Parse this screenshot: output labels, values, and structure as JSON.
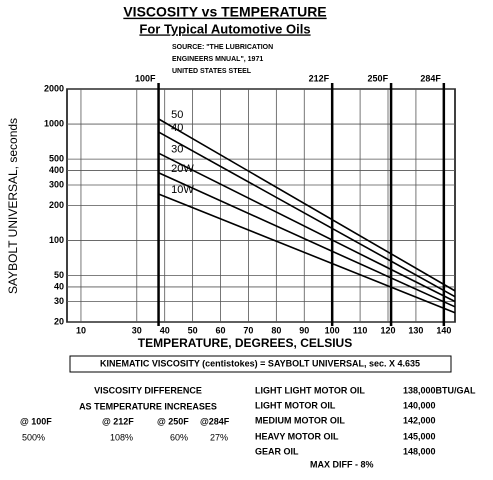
{
  "chart_data": {
    "type": "line",
    "title": "VISCOSITY vs TEMPERATURE",
    "subtitle": "For Typical Automotive Oils",
    "source": [
      "SOURCE: \"THE LUBRICATION",
      "ENGINEERS MNUAL\", 1971",
      "UNITED STATES STEEL"
    ],
    "x_label": "TEMPERATURE, DEGREES, CELSIUS",
    "y_label": "SAYBOLT UNIVERSAL, seconds",
    "x": [
      38,
      144
    ],
    "series": [
      {
        "name": "50",
        "color": "#000000",
        "values": [
          1100,
          37
        ]
      },
      {
        "name": "40",
        "color": "#000000",
        "values": [
          850,
          33
        ]
      },
      {
        "name": "30",
        "color": "#000000",
        "values": [
          560,
          30
        ]
      },
      {
        "name": "20W",
        "color": "#000000",
        "values": [
          380,
          27
        ]
      },
      {
        "name": "10W",
        "color": "#000000",
        "values": [
          250,
          24
        ]
      }
    ],
    "xlim": [
      5,
      144
    ],
    "xticks": [
      10,
      30,
      40,
      50,
      60,
      70,
      80,
      90,
      100,
      110,
      120,
      130,
      140
    ],
    "top_ticks": [
      {
        "value": 37.8,
        "label": "100F"
      },
      {
        "value": 100,
        "label": "212F"
      },
      {
        "value": 121.1,
        "label": "250F"
      },
      {
        "value": 140,
        "label": "284F"
      }
    ],
    "ylim": [
      20,
      2000
    ],
    "yticks": [
      20,
      30,
      40,
      50,
      100,
      200,
      300,
      400,
      500,
      1000,
      2000
    ],
    "y_scale": "log",
    "grid": true
  },
  "formula": "KINEMATIC VISCOSITY (centistokes) = SAYBOLT UNIVERSAL, sec. X 4.635",
  "difference": {
    "title": [
      "VISCOSITY DIFFERENCE",
      "AS TEMPERATURE INCREASES"
    ],
    "headers": [
      "@ 100F",
      "@ 212F",
      "@ 250F",
      "@284F"
    ],
    "values": [
      "500%",
      "108%",
      "60%",
      "27%"
    ]
  },
  "energy": {
    "rows": [
      [
        "LIGHT LIGHT MOTOR OIL",
        "138,000BTU/GAL"
      ],
      [
        "LIGHT MOTOR OIL",
        "140,000"
      ],
      [
        "MEDIUM MOTOR OIL",
        "142,000"
      ],
      [
        "HEAVY MOTOR OIL",
        "145,000"
      ],
      [
        "GEAR OIL",
        "148,000"
      ]
    ],
    "max_diff": "MAX DIFF  -  8%"
  }
}
